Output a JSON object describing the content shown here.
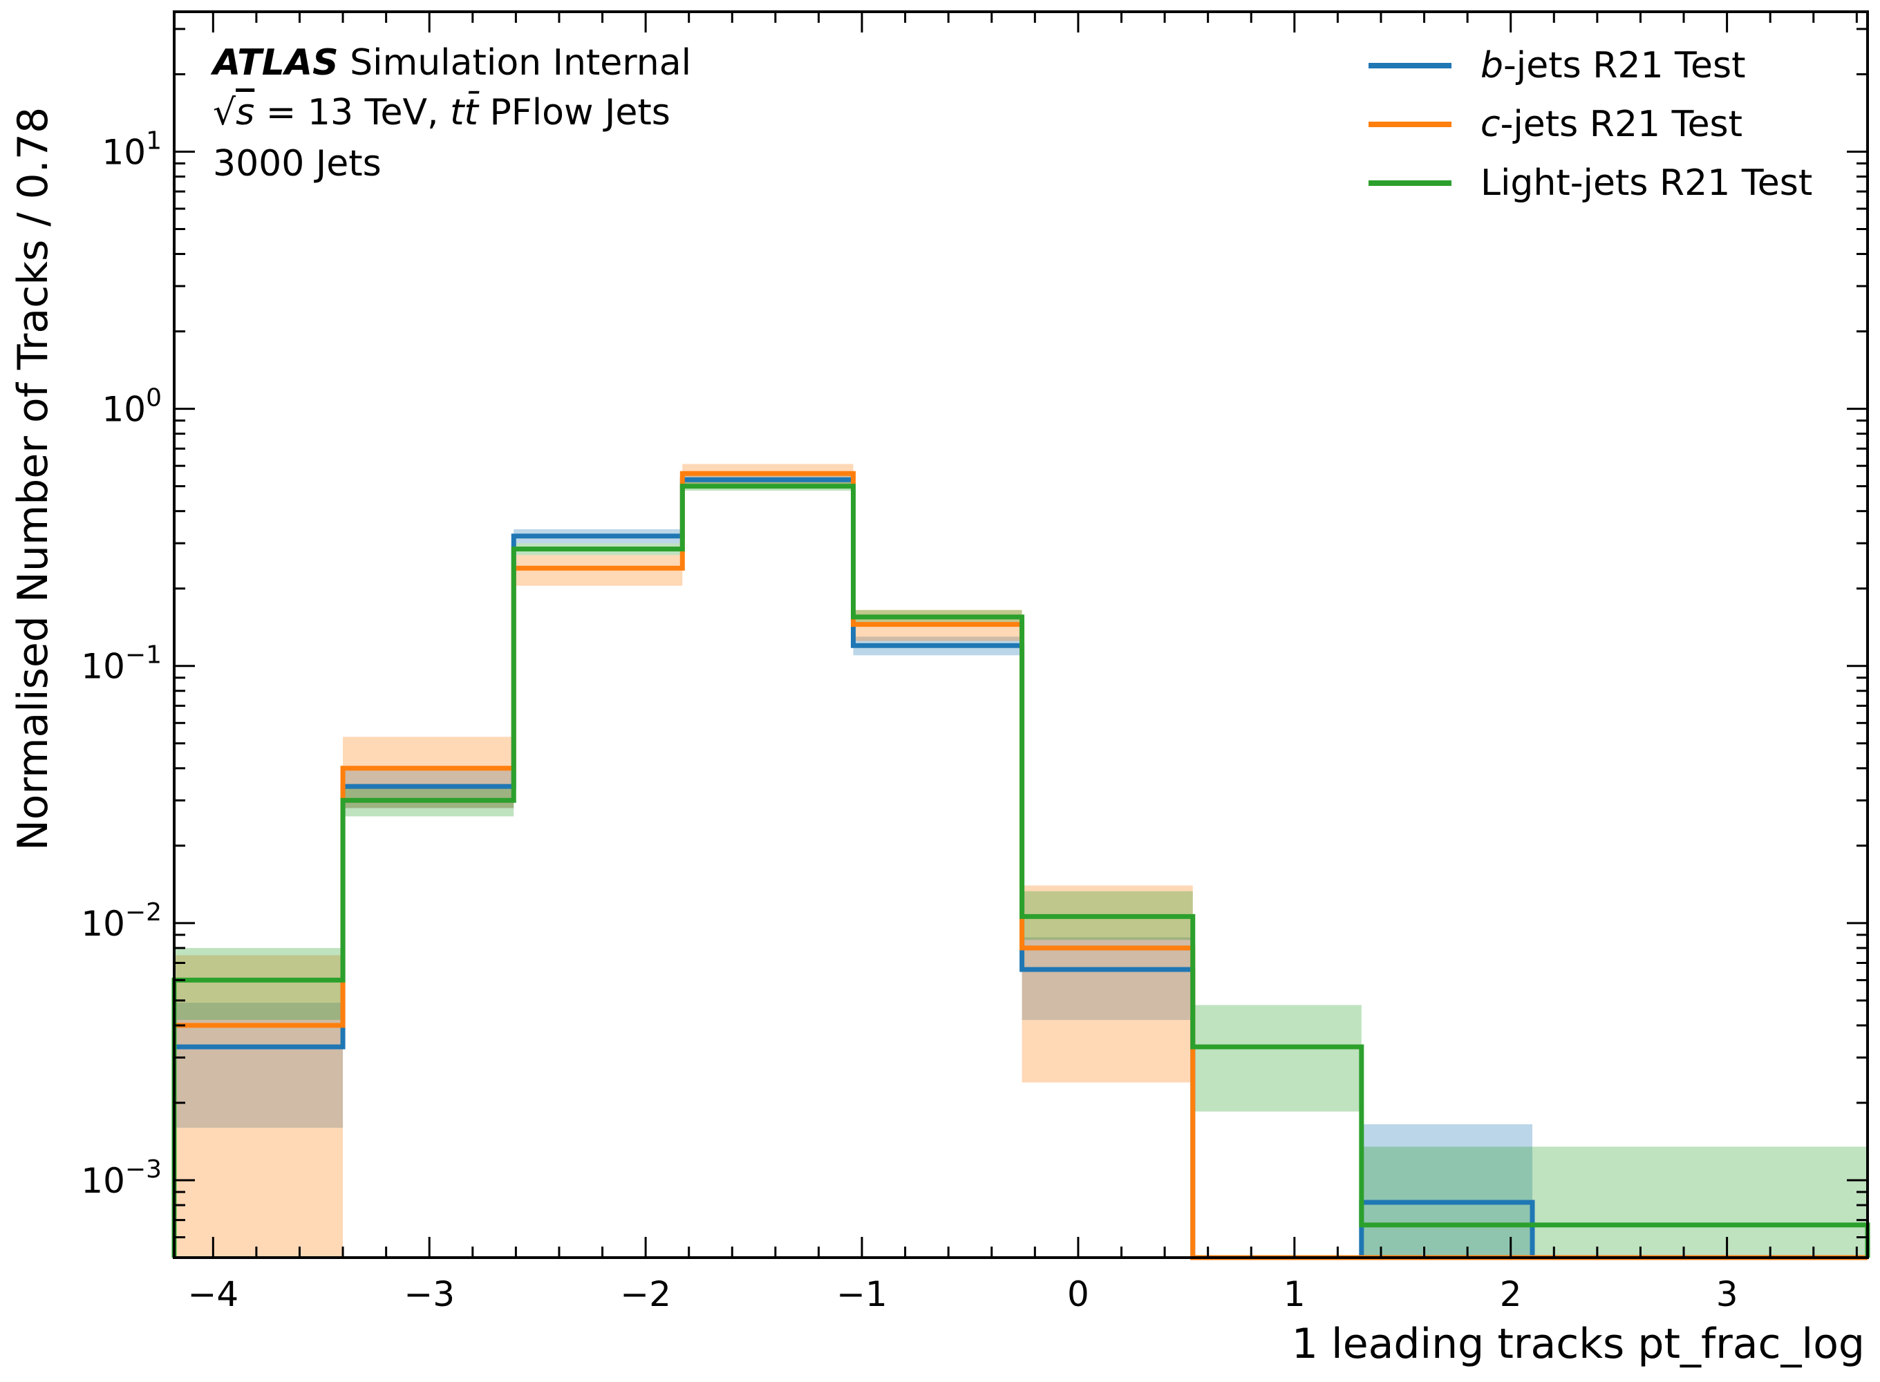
{
  "chart_data": {
    "type": "histogram-step",
    "title": "",
    "xlabel": "1 leading tracks pt_frac_log",
    "ylabel": "Normalised Number of Tracks / 0.78",
    "yscale": "log",
    "xlim": [
      -4.18,
      3.65
    ],
    "ylim": [
      0.0005,
      35
    ],
    "x_ticks": [
      -4,
      -3,
      -2,
      -1,
      0,
      1,
      2,
      3
    ],
    "x_tick_labels": [
      "−4",
      "−3",
      "−2",
      "−1",
      "0",
      "1",
      "2",
      "3"
    ],
    "y_ticks": [
      0.001,
      0.01,
      0.1,
      1,
      10
    ],
    "y_tick_labels": [
      {
        "base": "10",
        "exp": "−3"
      },
      {
        "base": "10",
        "exp": "−2"
      },
      {
        "base": "10",
        "exp": "−1"
      },
      {
        "base": "10",
        "exp": "0"
      },
      {
        "base": "10",
        "exp": "1"
      }
    ],
    "bin_edges": [
      -4.18,
      -3.4,
      -2.61,
      -1.83,
      -1.04,
      -0.26,
      0.53,
      1.31,
      2.1,
      3.65
    ],
    "annotations": {
      "atlas": "ATLAS",
      "status": "Simulation Internal",
      "sqrt_s": "s",
      "energy": "= 13 TeV,",
      "process": "tt̄",
      "jets_label": "PFlow Jets",
      "n_jets": "3000 Jets"
    },
    "legend_position": "upper-right",
    "grid": false,
    "series": [
      {
        "name": "b-jets R21 Test",
        "name_italic": "b",
        "name_rest": "-jets R21 Test",
        "color": "#1f77b4",
        "values": [
          0.0033,
          0.034,
          0.32,
          0.53,
          0.12,
          0.0066,
          null,
          0.00082,
          null
        ],
        "band_low": [
          0.0016,
          0.028,
          0.3,
          0.51,
          0.11,
          0.0042,
          null,
          0.0003,
          null
        ],
        "band_high": [
          0.0049,
          0.04,
          0.34,
          0.55,
          0.13,
          0.0088,
          null,
          0.00165,
          null
        ]
      },
      {
        "name": "c-jets R21 Test",
        "name_italic": "c",
        "name_rest": "-jets R21 Test",
        "color": "#ff7f0e",
        "values": [
          0.004,
          0.04,
          0.24,
          0.56,
          0.145,
          0.008,
          null,
          null,
          null
        ],
        "band_low": [
          0.0003,
          0.028,
          0.205,
          0.51,
          0.125,
          0.0024,
          null,
          null,
          null
        ],
        "band_high": [
          0.0075,
          0.053,
          0.27,
          0.61,
          0.165,
          0.014,
          null,
          null,
          null
        ]
      },
      {
        "name": "Light-jets R21 Test",
        "name_italic": "",
        "name_rest": "Light-jets R21 Test",
        "color": "#2ca02c",
        "values": [
          0.006,
          0.03,
          0.285,
          0.5,
          0.155,
          0.0106,
          0.0033,
          0.00067,
          0.00067
        ],
        "band_low": [
          0.0042,
          0.026,
          0.27,
          0.48,
          0.145,
          0.0086,
          0.00185,
          0.0003,
          0.0003
        ],
        "band_high": [
          0.008,
          0.034,
          0.3,
          0.52,
          0.165,
          0.0133,
          0.0048,
          0.00135,
          0.00135
        ]
      }
    ]
  }
}
